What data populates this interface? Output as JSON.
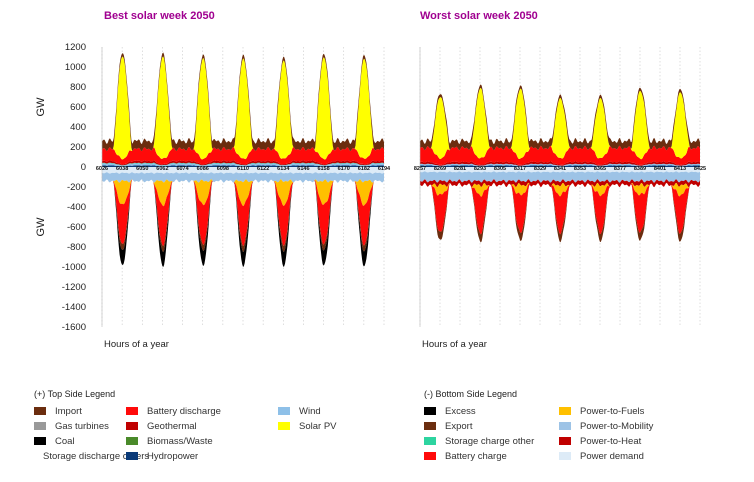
{
  "chart_data": [
    {
      "type": "area",
      "title": "Best solar week 2050",
      "title_color": "#a00090",
      "xlabel": "Hours of a year",
      "ylabel": "GW",
      "ylim": [
        -1600,
        1200
      ],
      "yticks": [
        1200,
        1000,
        800,
        600,
        400,
        200,
        0,
        -200,
        -400,
        -600,
        -800,
        -1000,
        -1200,
        -1400,
        -1600
      ],
      "xticks": [
        "6026",
        "6038",
        "6050",
        "6062",
        "6074",
        "6086",
        "6098",
        "6110",
        "6122",
        "6134",
        "6146",
        "6158",
        "6170",
        "6182",
        "6194"
      ],
      "x_range": [
        6026,
        6194
      ],
      "grid": true,
      "daily_peak_total_gw": [
        1130,
        1125,
        1115,
        1110,
        1085,
        1120,
        1100
      ],
      "daily_trough_total_gw": [
        -980,
        -960,
        -950,
        -930,
        -890,
        -960,
        -1000
      ],
      "series_top": [
        {
          "name": "Import",
          "typical_gw": 80
        },
        {
          "name": "Battery discharge",
          "typical_gw": 120
        },
        {
          "name": "Geothermal",
          "typical_gw": 20
        },
        {
          "name": "Storage discharge others",
          "typical_gw": 5
        },
        {
          "name": "Hydropower",
          "typical_gw": 15
        },
        {
          "name": "Wind",
          "typical_gw": 20
        },
        {
          "name": "Solar PV",
          "peak_gw": [
            1030,
            1020,
            1010,
            1000,
            980,
            1020,
            1000
          ]
        }
      ],
      "series_bottom": [
        {
          "name": "Power demand",
          "typical_gw": -60
        },
        {
          "name": "Power-to-Mobility",
          "typical_gw": -80
        },
        {
          "name": "Power-to-Fuels",
          "peak_gw": -240
        },
        {
          "name": "Battery charge",
          "peak_gw": -400
        },
        {
          "name": "Export",
          "peak_gw": -60
        },
        {
          "name": "Excess",
          "peak_gw": -150
        }
      ]
    },
    {
      "type": "area",
      "title": "Worst solar week 2050",
      "title_color": "#a00090",
      "xlabel": "Hours of a year",
      "ylabel": "",
      "ylim": [
        -1600,
        1200
      ],
      "xticks": [
        "8257",
        "8269",
        "8281",
        "8293",
        "8305",
        "8317",
        "8329",
        "8341",
        "8353",
        "8365",
        "8377",
        "8389",
        "8401",
        "8413",
        "8425"
      ],
      "x_range": [
        8257,
        8425
      ],
      "grid": true,
      "daily_peak_total_gw": [
        720,
        840,
        820,
        700,
        720,
        790,
        790
      ],
      "daily_trough_total_gw": [
        -650,
        -760,
        -730,
        -620,
        -680,
        -730,
        -720
      ],
      "series_top": [
        {
          "name": "Import",
          "typical_gw": 70
        },
        {
          "name": "Battery discharge",
          "typical_gw": 140
        },
        {
          "name": "Geothermal",
          "typical_gw": 20
        },
        {
          "name": "Hydropower",
          "typical_gw": 15
        },
        {
          "name": "Wind",
          "typical_gw": 15
        },
        {
          "name": "Solar PV",
          "peak_gw": [
            620,
            700,
            700,
            600,
            600,
            680,
            660
          ]
        }
      ],
      "series_bottom": [
        {
          "name": "Power demand",
          "typical_gw": -50
        },
        {
          "name": "Power-to-Mobility",
          "typical_gw": -90
        },
        {
          "name": "Power-to-Heat",
          "typical_gw": -40
        },
        {
          "name": "Power-to-Fuels",
          "peak_gw": -100
        },
        {
          "name": "Battery charge",
          "peak_gw": -380
        },
        {
          "name": "Export",
          "peak_gw": -80
        }
      ]
    }
  ],
  "legends": {
    "top": {
      "title": "(+) Top Side Legend",
      "items": [
        {
          "label": "Import",
          "color": "#6b2d0f"
        },
        {
          "label": "Gas turbines",
          "color": "#999999"
        },
        {
          "label": "Coal",
          "color": "#000000"
        },
        {
          "label": "Storage discharge others",
          "color": "#2dd4a0"
        },
        {
          "label": "Battery discharge",
          "color": "#ff0a0a"
        },
        {
          "label": "Geothermal",
          "color": "#c00000"
        },
        {
          "label": "Biomass/Waste",
          "color": "#4a8a2a"
        },
        {
          "label": "Hydropower",
          "color": "#0a3a78"
        },
        {
          "label": "Wind",
          "color": "#8ec0e8"
        },
        {
          "label": "Solar PV",
          "color": "#ffff00"
        }
      ]
    },
    "bottom": {
      "title": "(-) Bottom Side Legend",
      "items": [
        {
          "label": "Excess",
          "color": "#000000"
        },
        {
          "label": "Export",
          "color": "#6b2d0f"
        },
        {
          "label": "Storage charge other",
          "color": "#2dd4a0"
        },
        {
          "label": "Battery charge",
          "color": "#ff0a0a"
        },
        {
          "label": "Power-to-Fuels",
          "color": "#ffc000"
        },
        {
          "label": "Power-to-Mobility",
          "color": "#9dc3e6"
        },
        {
          "label": "Power-to-Heat",
          "color": "#c00000"
        },
        {
          "label": "Power demand",
          "color": "#ddebf7"
        }
      ]
    }
  }
}
